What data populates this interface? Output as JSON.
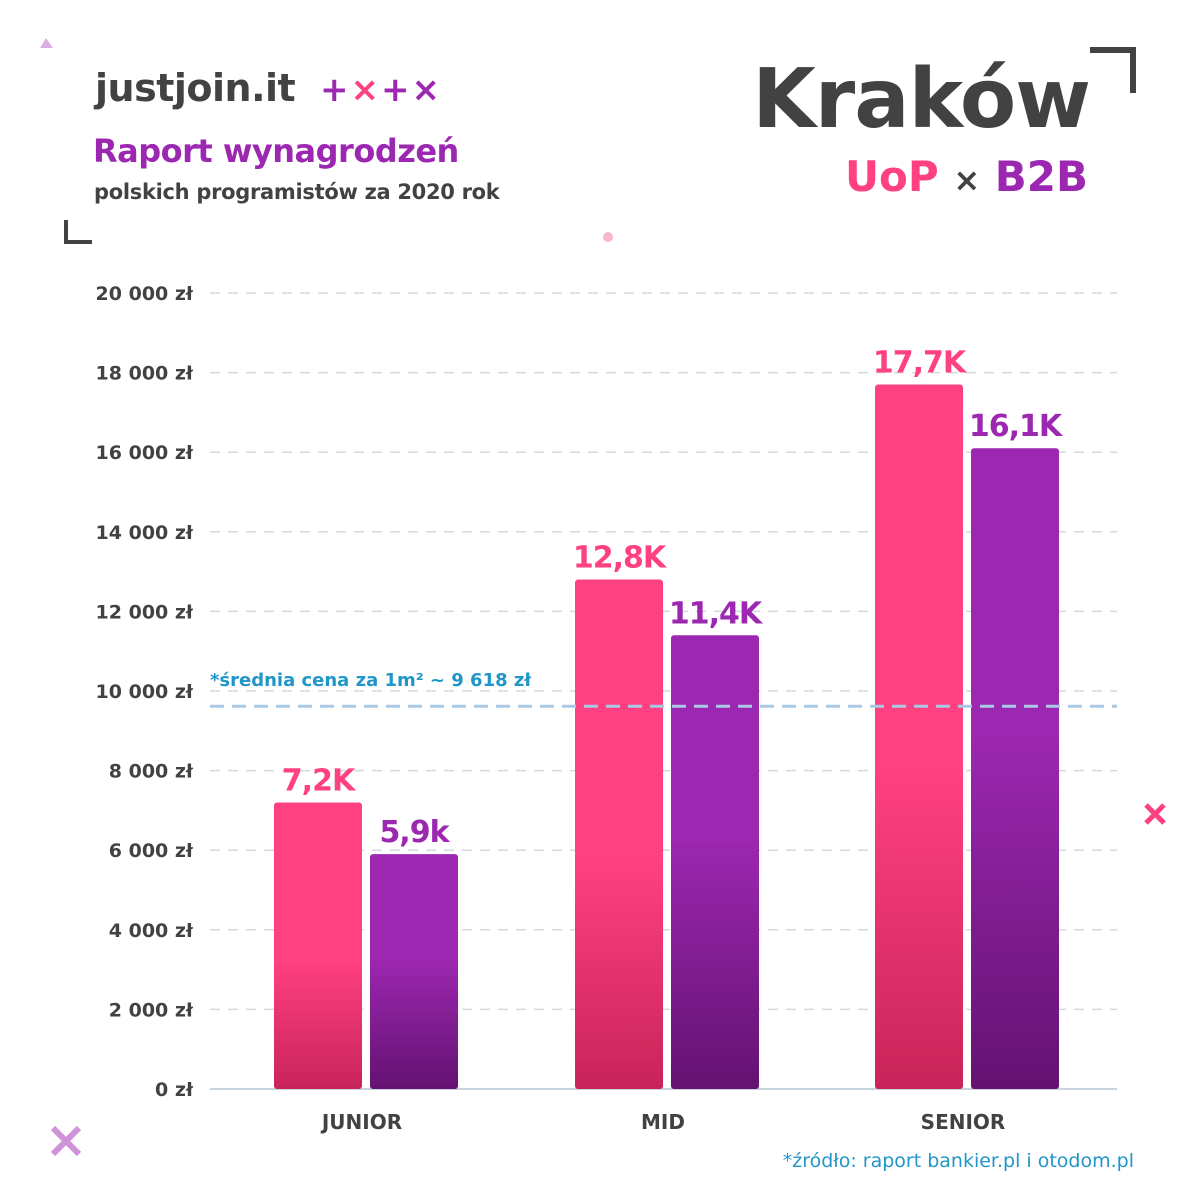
{
  "header": {
    "logo": "justjoin.it",
    "title": "Raport wynagrodzeń",
    "subtitle": "polskich programistów za 2020 rok",
    "city": "Kraków",
    "legend_uop": "UoP",
    "legend_sep": "×",
    "legend_b2b": "B2B"
  },
  "source": "*źródło: raport bankier.pl i otodom.pl",
  "colors": {
    "uop": "#ff4081",
    "b2b": "#9c27b0",
    "text": "#424242",
    "reference": "#2196c9"
  },
  "chart_data": {
    "type": "bar",
    "categories": [
      "JUNIOR",
      "MID",
      "SENIOR"
    ],
    "series": [
      {
        "name": "UoP",
        "values": [
          7200,
          12800,
          17700
        ],
        "labels": [
          "7,2K",
          "12,8K",
          "17,7K"
        ]
      },
      {
        "name": "B2B",
        "values": [
          5900,
          11400,
          16100
        ],
        "labels": [
          "5,9k",
          "11,4K",
          "16,1K"
        ]
      }
    ],
    "ylim": [
      0,
      20000
    ],
    "yticks": [
      0,
      2000,
      4000,
      6000,
      8000,
      10000,
      12000,
      14000,
      16000,
      18000,
      20000
    ],
    "ytick_labels": [
      "0 zł",
      "2 000 zł",
      "4 000 zł",
      "6 000 zł",
      "8 000 zł",
      "10 000 zł",
      "12 000 zł",
      "14 000 zł",
      "16 000 zł",
      "18 000 zł",
      "20 000 zł"
    ],
    "grid": true,
    "reference_line": {
      "value": 9618,
      "label": "*średnia cena za 1m² ~ 9 618 zł"
    }
  }
}
